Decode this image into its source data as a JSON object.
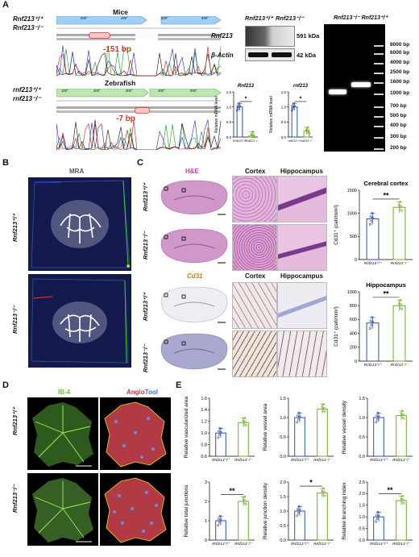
{
  "panelA": {
    "label": "A",
    "mice": {
      "title": "Mice",
      "wt": "Rnf213⁺/⁺",
      "ko": "Rnf213⁻/⁻",
      "deletion": "-151 bp",
      "ticks": [
        "200°",
        "400°",
        "600°",
        "800°"
      ]
    },
    "zebrafish": {
      "title": "Zebrafish",
      "wt": "rnf213⁺/⁺",
      "ko": "rnf213⁻/⁻",
      "deletion": "-7 bp",
      "ticks": [
        "100°",
        "200°",
        "300°",
        "400°",
        "500°"
      ]
    },
    "western": {
      "col_wt": "Rnf213⁺/⁺",
      "col_ko": "Rnf213⁻/⁻",
      "row1": "Rnf213",
      "row2": "β-Actin",
      "size1": "591 kDa",
      "size2": "42 kDa"
    },
    "gel": {
      "header": "Rnf213⁻/⁻ Rnf213⁺/⁺",
      "ladder": [
        "8000 bp",
        "6000 bp",
        "4000 bp",
        "2500 bp",
        "1600 bp",
        "1000 bp",
        "700 bp",
        "500 bp",
        "400 bp",
        "300 bp",
        "200 bp"
      ]
    }
  },
  "chart_data": [
    {
      "type": "bar",
      "title": "Rnf213",
      "ylabel": "Relative mRNA level",
      "categories": [
        "Rnf213⁺/⁺",
        "Rnf213⁻/⁻"
      ],
      "values": [
        1.0,
        0.05
      ],
      "ylim": [
        0,
        1.5
      ],
      "yticks": [
        "0.0",
        "0.5",
        "1.0",
        "1.5"
      ],
      "significance": "*"
    },
    {
      "type": "bar",
      "title": "rnf213",
      "ylabel": "Relative mRNA level",
      "categories": [
        "rnf213⁺/⁺",
        "rnf213⁻/⁻"
      ],
      "values": [
        1.0,
        0.2
      ],
      "ylim": [
        0,
        1.5
      ],
      "yticks": [
        "0.0",
        "0.5",
        "1.0",
        "1.5"
      ],
      "significance": "*"
    },
    {
      "type": "bar",
      "title": "Cerebral cortex",
      "ylabel": "Cd31⁺ (cell/mm²)",
      "categories": [
        "Rnf213⁺/⁺",
        "Rnf213⁻/⁻"
      ],
      "values": [
        880,
        1130
      ],
      "ylim": [
        0,
        1500
      ],
      "yticks": [
        "0",
        "500",
        "1000",
        "1500"
      ],
      "significance": "**"
    },
    {
      "type": "bar",
      "title": "Hippocampus",
      "ylabel": "Cd31⁺ (cell/mm²)",
      "categories": [
        "Rnf213⁺/⁺",
        "Rnf213⁻/⁻"
      ],
      "values": [
        550,
        800
      ],
      "ylim": [
        0,
        1000
      ],
      "yticks": [
        "0",
        "200",
        "400",
        "600",
        "800",
        "1000"
      ],
      "significance": "**"
    },
    {
      "type": "bar",
      "ylabel": "Relative vascularized area",
      "categories": [
        "Rnf213⁺/⁺",
        "Rnf213⁻/⁻"
      ],
      "values": [
        1.0,
        1.18
      ],
      "ylim": [
        0.6,
        1.6
      ],
      "yticks": [
        "0.6",
        "0.8",
        "1.0",
        "1.2",
        "1.4",
        "1.6"
      ]
    },
    {
      "type": "bar",
      "ylabel": "Relative vessel area",
      "categories": [
        "Rnf213⁺/⁺",
        "Rnf213⁻/⁻"
      ],
      "values": [
        1.0,
        1.22
      ],
      "ylim": [
        0.0,
        1.5
      ],
      "yticks": [
        "0.0",
        "0.5",
        "1.0",
        "1.5"
      ]
    },
    {
      "type": "bar",
      "ylabel": "Relative vessel density",
      "categories": [
        "Rnf213⁺/⁺",
        "Rnf213⁻/⁻"
      ],
      "values": [
        1.0,
        1.05
      ],
      "ylim": [
        0.0,
        1.5
      ],
      "yticks": [
        "0.0",
        "0.5",
        "1.0",
        "1.5"
      ]
    },
    {
      "type": "bar",
      "ylabel": "Relative total junctions",
      "categories": [
        "Rnf213⁺/⁺",
        "Rnf213⁻/⁻"
      ],
      "values": [
        1.0,
        2.0
      ],
      "ylim": [
        0,
        3
      ],
      "yticks": [
        "0",
        "1",
        "2",
        "3"
      ],
      "significance": "**"
    },
    {
      "type": "bar",
      "ylabel": "Relative junction density",
      "categories": [
        "Rnf213⁺/⁺",
        "Rnf213⁻/⁻"
      ],
      "values": [
        1.0,
        1.62
      ],
      "ylim": [
        0.0,
        2.0
      ],
      "yticks": [
        "0.0",
        "0.5",
        "1.0",
        "1.5",
        "2.0"
      ],
      "significance": "*"
    },
    {
      "type": "bar",
      "ylabel": "Relative branching index",
      "categories": [
        "Rnf213⁺/⁺",
        "Rnf213⁻/⁻"
      ],
      "values": [
        1.0,
        1.7
      ],
      "ylim": [
        0.0,
        2.5
      ],
      "yticks": [
        "0.0",
        "0.5",
        "1.0",
        "1.5",
        "2.0",
        "2.5"
      ],
      "significance": "**"
    }
  ],
  "panelB": {
    "label": "B",
    "title": "MRA",
    "wt": "Rnf213⁺/⁺",
    "ko": "Rnf213⁻/⁻"
  },
  "panelC": {
    "label": "C",
    "he": "H&E",
    "cd31": "Cd31",
    "cortex": "Cortex",
    "hippo": "Hippocampus",
    "wt": "Rnf213⁺/⁺",
    "ko": "Rnf213⁻/⁻"
  },
  "panelD": {
    "label": "D",
    "ib4": "IB-4",
    "angio": "Angio",
    "tool": "Tool",
    "wt": "Rnf213⁺/⁺",
    "ko": "Rnf213⁻/⁻"
  },
  "panelE": {
    "label": "E"
  },
  "colors": {
    "wt": "#2d4fa3",
    "ko": "#6fae2e",
    "red": "#d9322b",
    "he_pink": "#cc3fa0",
    "cd31_orange": "#c77a18",
    "mra_bg": "#151a4e"
  }
}
